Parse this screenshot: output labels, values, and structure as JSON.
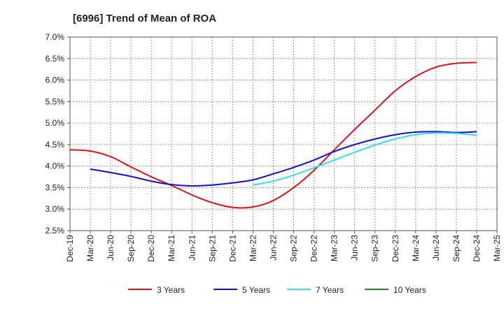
{
  "chart_data": {
    "type": "line",
    "title": "[6996]  Trend of Mean of ROA",
    "xlabel": "",
    "ylabel": "",
    "ylim": [
      2.5,
      7.0
    ],
    "yticks": [
      2.5,
      3.0,
      3.5,
      4.0,
      4.5,
      5.0,
      5.5,
      6.0,
      6.5,
      7.0
    ],
    "ytick_labels": [
      "2.5%",
      "3.0%",
      "3.5%",
      "4.0%",
      "4.5%",
      "5.0%",
      "5.5%",
      "6.0%",
      "6.5%",
      "7.0%"
    ],
    "categories": [
      "Dec-19",
      "Mar-20",
      "Jun-20",
      "Sep-20",
      "Dec-20",
      "Mar-21",
      "Jun-21",
      "Sep-21",
      "Dec-21",
      "Mar-22",
      "Jun-22",
      "Sep-22",
      "Dec-22",
      "Mar-23",
      "Jun-23",
      "Sep-23",
      "Dec-23",
      "Mar-24",
      "Jun-24",
      "Sep-24",
      "Dec-24",
      "Mar-25"
    ],
    "grid": true,
    "legend_position": "bottom",
    "series": [
      {
        "name": "3 Years",
        "color": "#dd1111",
        "values": [
          4.38,
          4.35,
          4.22,
          3.98,
          3.75,
          3.55,
          3.33,
          3.15,
          3.04,
          3.05,
          3.2,
          3.5,
          3.9,
          4.38,
          4.85,
          5.3,
          5.75,
          6.08,
          6.3,
          6.39,
          6.41,
          null
        ]
      },
      {
        "name": "5 Years",
        "color": "#1111cc",
        "values": [
          null,
          3.93,
          3.85,
          3.76,
          3.65,
          3.57,
          3.54,
          3.56,
          3.61,
          3.68,
          3.82,
          3.97,
          4.14,
          4.34,
          4.5,
          4.63,
          4.73,
          4.79,
          4.8,
          4.78,
          4.8,
          null
        ]
      },
      {
        "name": "7 Years",
        "color": "#33ddee",
        "values": [
          null,
          null,
          null,
          null,
          null,
          null,
          null,
          null,
          null,
          3.56,
          3.65,
          3.79,
          3.96,
          4.14,
          4.32,
          4.49,
          4.63,
          4.73,
          4.77,
          4.76,
          4.72,
          null
        ]
      },
      {
        "name": "10 Years",
        "color": "#228822",
        "values": [
          null,
          null,
          null,
          null,
          null,
          null,
          null,
          null,
          null,
          null,
          null,
          null,
          null,
          null,
          null,
          null,
          null,
          null,
          null,
          null,
          null,
          null
        ]
      }
    ]
  }
}
